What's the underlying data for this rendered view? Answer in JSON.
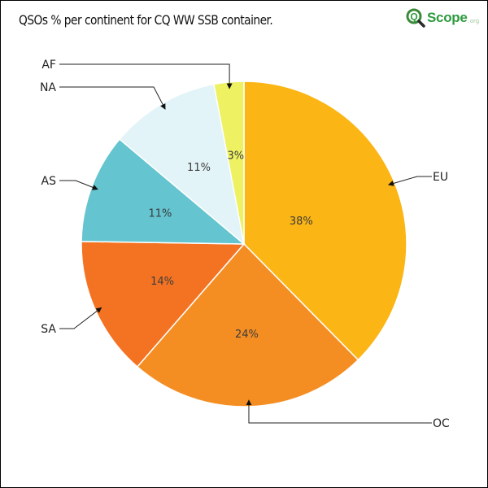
{
  "title": "QSOs % per continent for CQ WW SSB container.",
  "logo": {
    "brand": "Scope",
    "domain": ".org",
    "icon": "magnifier-q-icon",
    "colors": {
      "brand": "#2e9a3e",
      "mark": "#3a8a3a",
      "domain": "#9ec79a"
    }
  },
  "chart_data": {
    "type": "pie",
    "title": "QSOs % per continent for CQ WW SSB container.",
    "start_angle_deg": 0,
    "direction": "clockwise",
    "slices": [
      {
        "label": "EU",
        "value": 38,
        "display": "38%",
        "color": "#fbb515"
      },
      {
        "label": "OC",
        "value": 24,
        "display": "24%",
        "color": "#f58e22"
      },
      {
        "label": "SA",
        "value": 14,
        "display": "14%",
        "color": "#f47322"
      },
      {
        "label": "AS",
        "value": 11,
        "display": "11%",
        "color": "#64c4cf"
      },
      {
        "label": "NA",
        "value": 11,
        "display": "11%",
        "color": "#e2f4f7"
      },
      {
        "label": "AF",
        "value": 3,
        "display": "3%",
        "color": "#edf162"
      }
    ],
    "legend": "none",
    "label_position": "outside-with-leader-lines"
  }
}
